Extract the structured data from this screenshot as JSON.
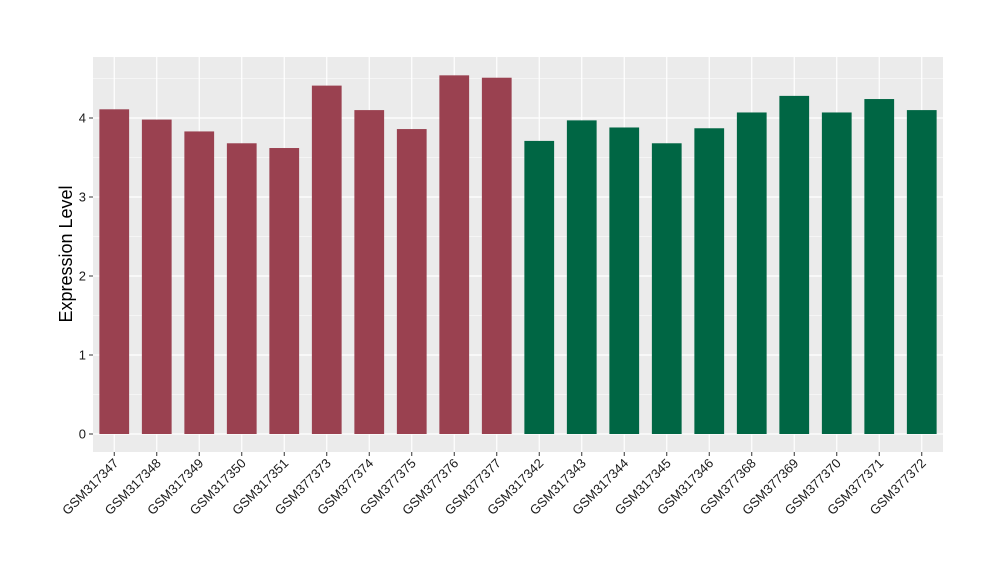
{
  "chart_data": {
    "type": "bar",
    "title": "",
    "xlabel": "",
    "ylabel": "Expression Level",
    "ylim": [
      -0.2,
      4.8
    ],
    "yticks": [
      0,
      1,
      2,
      3,
      4
    ],
    "grid": true,
    "legend": "none",
    "colors": {
      "group1": "#9a4150",
      "group2": "#006644",
      "panel": "#ebebeb",
      "grid": "#ffffff"
    },
    "categories": [
      "GSM317347",
      "GSM317348",
      "GSM317349",
      "GSM317350",
      "GSM317351",
      "GSM377373",
      "GSM377374",
      "GSM377375",
      "GSM377376",
      "GSM377377",
      "GSM317342",
      "GSM317343",
      "GSM317344",
      "GSM317345",
      "GSM317346",
      "GSM377368",
      "GSM377369",
      "GSM377370",
      "GSM377371",
      "GSM377372"
    ],
    "values": [
      4.11,
      3.98,
      3.83,
      3.68,
      3.62,
      4.41,
      4.1,
      3.86,
      4.54,
      4.51,
      3.71,
      3.97,
      3.88,
      3.68,
      3.87,
      4.07,
      4.28,
      4.07,
      4.24,
      4.1
    ],
    "bar_groups": [
      1,
      1,
      1,
      1,
      1,
      1,
      1,
      1,
      1,
      1,
      2,
      2,
      2,
      2,
      2,
      2,
      2,
      2,
      2,
      2
    ]
  }
}
